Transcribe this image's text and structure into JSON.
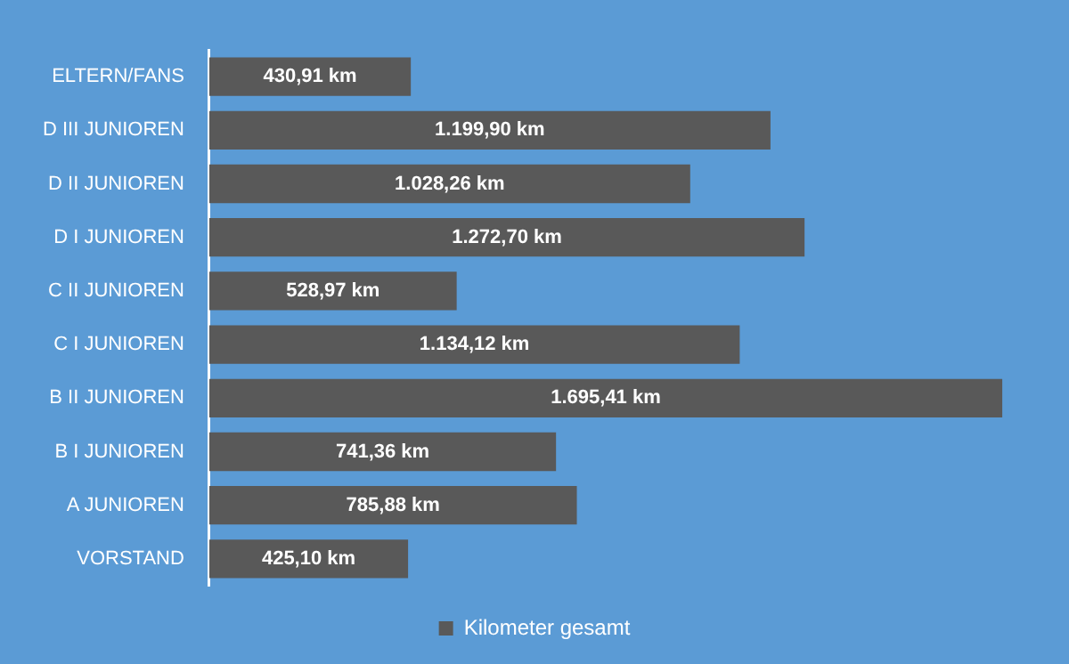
{
  "chart_data": {
    "type": "bar",
    "orientation": "horizontal",
    "categories": [
      "ELTERN/FANS",
      "D III JUNIOREN",
      "D II JUNIOREN",
      "D I JUNIOREN",
      "C II JUNIOREN",
      "C I JUNIOREN",
      "B II JUNIOREN",
      "B I JUNIOREN",
      "A JUNIOREN",
      "VORSTAND"
    ],
    "series": [
      {
        "name": "Kilometer gesamt",
        "color": "#595959",
        "values": [
          430.91,
          1199.9,
          1028.26,
          1272.7,
          528.97,
          1134.12,
          1695.41,
          741.36,
          785.88,
          425.1
        ],
        "value_labels": [
          "430,91 km",
          "1.199,90 km",
          "1.028,26 km",
          "1.272,70 km",
          "528,97 km",
          "1.134,12 km",
          "1.695,41 km",
          "741,36 km",
          "785,88 km",
          "425,10 km"
        ]
      }
    ],
    "tick_labels": "y",
    "grid": false,
    "legend": "bottom",
    "data_labels": true
  }
}
